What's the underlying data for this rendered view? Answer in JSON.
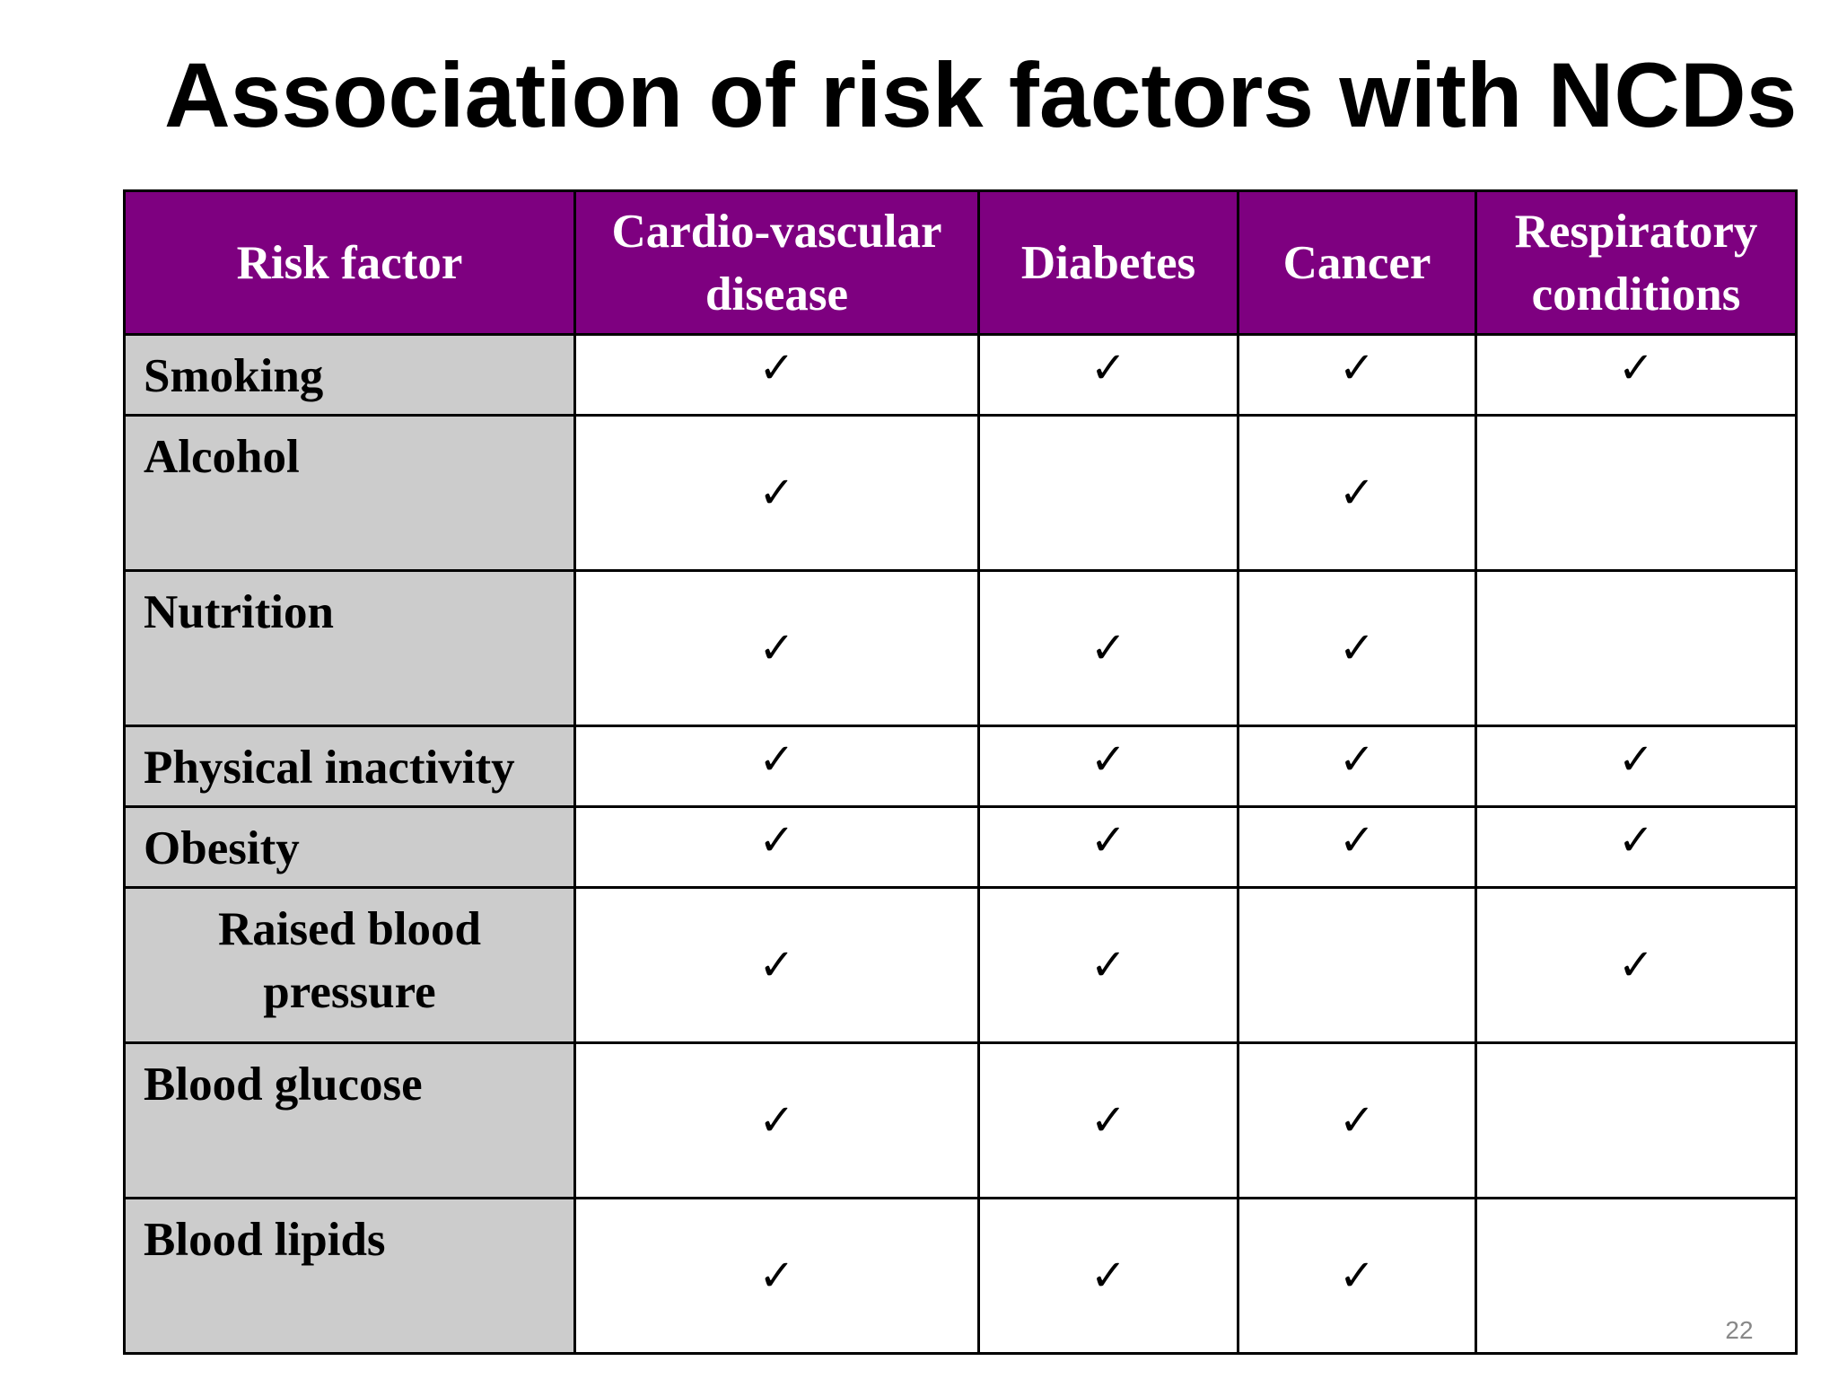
{
  "slide": {
    "title": "Association of risk factors with NCDs",
    "page_number": "22"
  },
  "table": {
    "headers": [
      "Risk factor",
      "Cardio-vascular disease",
      "Diabetes",
      "Cancer",
      "Respiratory conditions"
    ],
    "check_symbol": "✓",
    "rows": [
      {
        "label": "Smoking",
        "marks": [
          true,
          true,
          true,
          true
        ]
      },
      {
        "label": "Alcohol",
        "marks": [
          true,
          false,
          true,
          false
        ]
      },
      {
        "label": "Nutrition",
        "marks": [
          true,
          true,
          true,
          false
        ]
      },
      {
        "label": "Physical inactivity",
        "marks": [
          true,
          true,
          true,
          true
        ]
      },
      {
        "label": "Obesity",
        "marks": [
          true,
          true,
          true,
          true
        ]
      },
      {
        "label": "Raised blood pressure",
        "marks": [
          true,
          true,
          false,
          true
        ]
      },
      {
        "label": "Blood glucose",
        "marks": [
          true,
          true,
          true,
          false
        ]
      },
      {
        "label": "Blood lipids",
        "marks": [
          true,
          true,
          true,
          false
        ]
      }
    ]
  }
}
